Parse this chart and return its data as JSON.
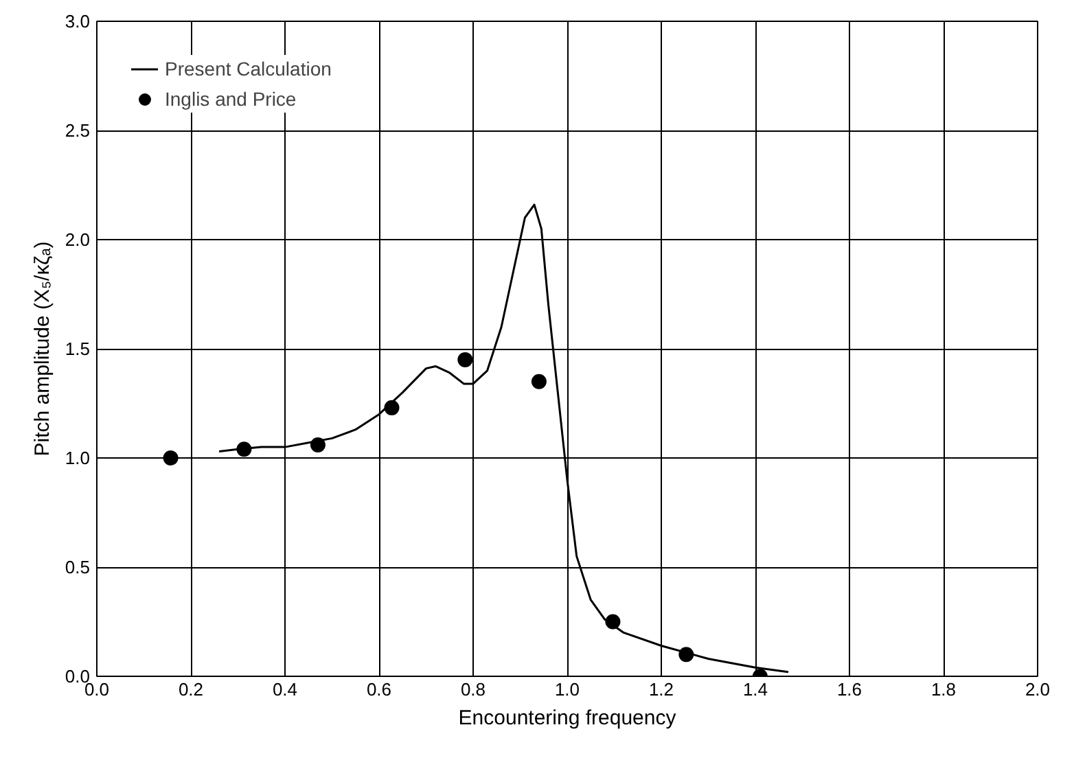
{
  "chart_data": {
    "type": "line",
    "xlabel": "Encountering frequency",
    "ylabel": "Pitch amplitude (X₅/κζₐ)",
    "xlim": [
      0,
      2
    ],
    "ylim": [
      0,
      3
    ],
    "xticks": [
      {
        "value": 0,
        "label": "0.0"
      },
      {
        "value": 0.2,
        "label": "0.2"
      },
      {
        "value": 0.4,
        "label": "0.4"
      },
      {
        "value": 0.6,
        "label": "0.6"
      },
      {
        "value": 0.8,
        "label": "0.8"
      },
      {
        "value": 1.0,
        "label": "1.0"
      },
      {
        "value": 1.2,
        "label": "1.2"
      },
      {
        "value": 1.4,
        "label": "1.4"
      },
      {
        "value": 1.6,
        "label": "1.6"
      },
      {
        "value": 1.8,
        "label": "1.8"
      },
      {
        "value": 2.0,
        "label": "2.0"
      }
    ],
    "yticks": [
      {
        "value": 0,
        "label": "0.0"
      },
      {
        "value": 0.5,
        "label": "0.5"
      },
      {
        "value": 1.0,
        "label": "1.0"
      },
      {
        "value": 1.5,
        "label": "1.5"
      },
      {
        "value": 2.0,
        "label": "2.0"
      },
      {
        "value": 2.5,
        "label": "2.5"
      },
      {
        "value": 3.0,
        "label": "3.0"
      }
    ],
    "grid": true,
    "legend": "top left",
    "series": [
      {
        "name": "Present Calculation",
        "color": "#000000",
        "marker": "none",
        "line_style": "solid",
        "x": [
          0.26,
          0.3,
          0.35,
          0.4,
          0.45,
          0.5,
          0.55,
          0.6,
          0.65,
          0.7,
          0.72,
          0.75,
          0.78,
          0.8,
          0.83,
          0.86,
          0.89,
          0.91,
          0.93,
          0.945,
          0.96,
          0.98,
          1.0,
          1.02,
          1.05,
          1.08,
          1.12,
          1.2,
          1.3,
          1.4,
          1.47
        ],
        "values": [
          1.03,
          1.04,
          1.05,
          1.05,
          1.07,
          1.09,
          1.13,
          1.2,
          1.3,
          1.41,
          1.42,
          1.39,
          1.34,
          1.34,
          1.4,
          1.6,
          1.9,
          2.1,
          2.16,
          2.05,
          1.7,
          1.3,
          0.9,
          0.55,
          0.35,
          0.26,
          0.2,
          0.14,
          0.08,
          0.04,
          0.02
        ]
      },
      {
        "name": "Inglis and Price",
        "type": "scatter",
        "color": "#000000",
        "marker": "circle",
        "x": [
          0.157,
          0.313,
          0.47,
          0.627,
          0.783,
          0.94,
          1.097,
          1.253,
          1.41
        ],
        "values": [
          1.0,
          1.04,
          1.06,
          1.23,
          1.45,
          1.35,
          0.25,
          0.1,
          0.0
        ]
      }
    ]
  }
}
